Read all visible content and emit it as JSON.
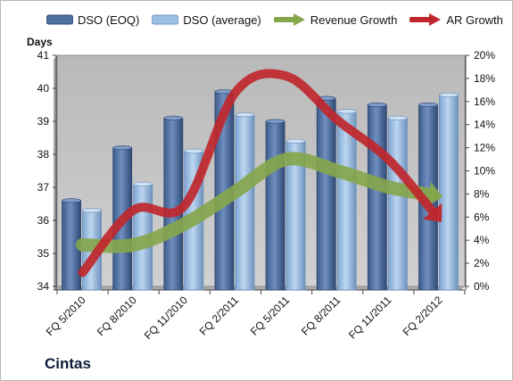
{
  "chart_data": {
    "type": "bar",
    "categories": [
      "FQ 5/2010",
      "FQ 8/2010",
      "FQ 11/2010",
      "FQ 2/2011",
      "FQ 5/2011",
      "FQ 8/2011",
      "FQ 11/2011",
      "FQ 2/2012"
    ],
    "series": [
      {
        "name": "DSO (EOQ)",
        "axis": "left",
        "kind": "bar",
        "color": "#4f6f9f",
        "values": [
          36.6,
          38.2,
          39.1,
          39.9,
          39.0,
          39.7,
          39.5,
          39.5
        ]
      },
      {
        "name": "DSO (average)",
        "axis": "left",
        "kind": "bar",
        "color": "#9dc0e4",
        "values": [
          36.3,
          37.1,
          38.1,
          39.2,
          38.4,
          39.3,
          39.1,
          39.8
        ]
      },
      {
        "name": "Revenue Growth",
        "axis": "right",
        "kind": "arrow-line",
        "color": "#86a64c",
        "values": [
          3.6,
          3.6,
          5.4,
          8.2,
          11.0,
          10.0,
          8.6,
          7.8
        ]
      },
      {
        "name": "AR Growth",
        "axis": "right",
        "kind": "arrow-line",
        "color": "#c0272d",
        "values": [
          1.2,
          6.6,
          7.0,
          16.8,
          18.2,
          14.4,
          11.0,
          5.8
        ]
      }
    ],
    "ylabel": "Days",
    "ylim": [
      34,
      41
    ],
    "yticks": [
      "34",
      "35",
      "36",
      "37",
      "38",
      "39",
      "40",
      "41"
    ],
    "y2lim": [
      0,
      20
    ],
    "y2ticks": [
      "0%",
      "2%",
      "4%",
      "6%",
      "8%",
      "10%",
      "12%",
      "14%",
      "16%",
      "18%",
      "20%"
    ],
    "legend_position": "top",
    "grid": false,
    "plot_background": "#c0c0c0"
  },
  "company": "Cintas"
}
